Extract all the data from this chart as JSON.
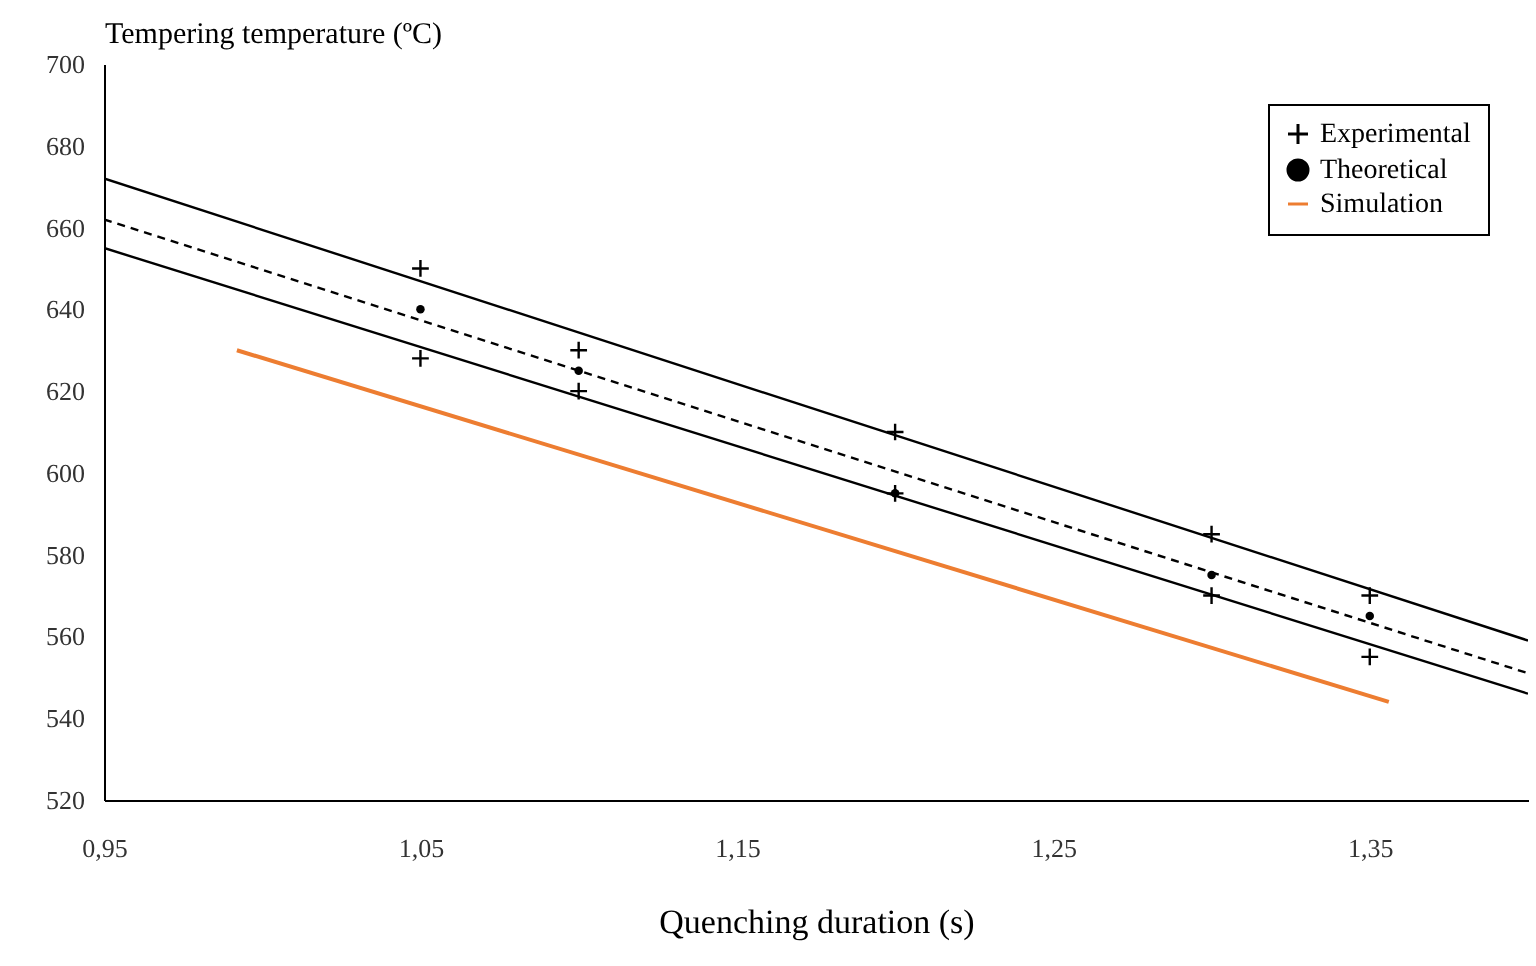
{
  "chart_data": {
    "type": "line",
    "xlabel": "Quenching duration (s)",
    "ylabel": "Tempering temperature (ºC)",
    "xlim": [
      0.95,
      1.4
    ],
    "ylim": [
      520,
      700
    ],
    "xticks": [
      {
        "value": 0.95,
        "label": "0,95"
      },
      {
        "value": 1.05,
        "label": "1,05"
      },
      {
        "value": 1.15,
        "label": "1,15"
      },
      {
        "value": 1.25,
        "label": "1,25"
      },
      {
        "value": 1.35,
        "label": "1,35"
      }
    ],
    "yticks": [
      520,
      540,
      560,
      580,
      600,
      620,
      640,
      660,
      680,
      700
    ],
    "grid": false,
    "legend": "top right",
    "series": [
      {
        "name": "Experimental",
        "type": "scatter",
        "marker": "cross",
        "color": "#000000",
        "x": [
          1.05,
          1.05,
          1.1,
          1.1,
          1.2,
          1.2,
          1.3,
          1.3,
          1.35,
          1.35
        ],
        "values": [
          650,
          628,
          630,
          620,
          610,
          595,
          585,
          570,
          570,
          555
        ]
      },
      {
        "name": "Theoretical",
        "type": "scatter",
        "marker": "circle",
        "color": "#000000",
        "x": [
          1.05,
          1.1,
          1.2,
          1.3,
          1.35
        ],
        "values": [
          640,
          625,
          595,
          575,
          565
        ]
      },
      {
        "type": "line",
        "line_style": "solid",
        "color": "#000000",
        "x": [
          0.95,
          1.4
        ],
        "values": [
          672,
          559
        ]
      },
      {
        "type": "line",
        "line_style": "solid",
        "color": "#000000",
        "x": [
          0.95,
          1.4
        ],
        "values": [
          655,
          546
        ]
      },
      {
        "type": "line",
        "line_style": "dashed",
        "color": "#000000",
        "x": [
          0.95,
          1.4
        ],
        "values": [
          662,
          551
        ]
      },
      {
        "name": "Simulation",
        "type": "line",
        "line_style": "solid",
        "color": "#ed7d31",
        "x": [
          0.992,
          1.356
        ],
        "values": [
          630,
          544
        ]
      }
    ]
  }
}
